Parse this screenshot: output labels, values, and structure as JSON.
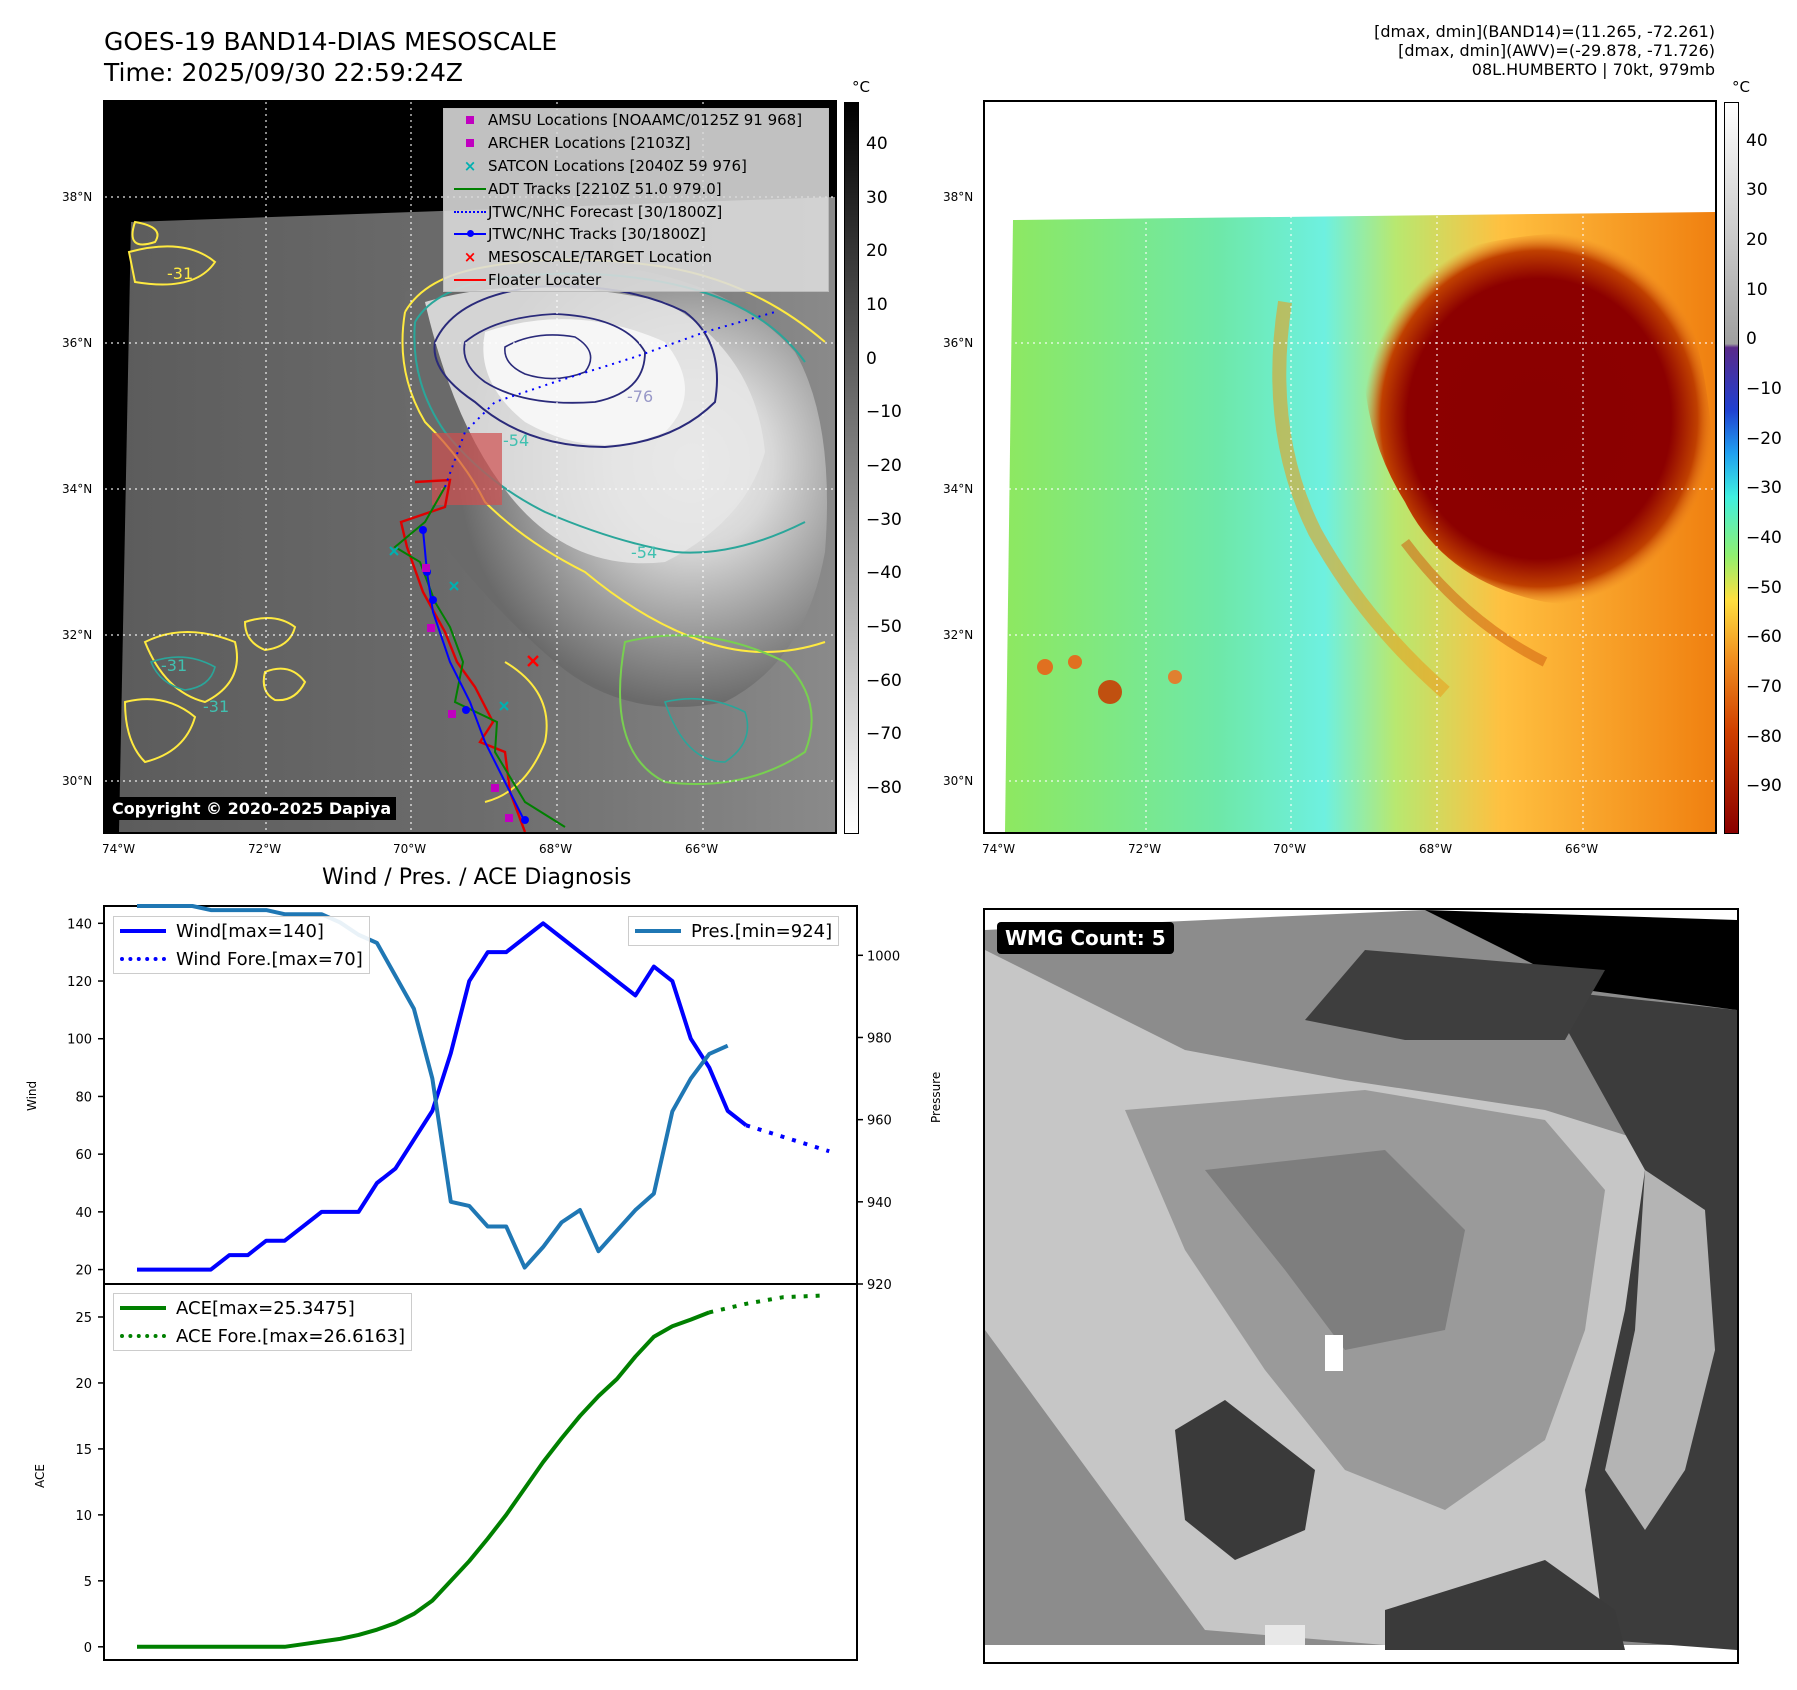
{
  "header": {
    "title_line1": "GOES-19 BAND14-DIAS MESOSCALE",
    "title_line2": "Time: 2025/09/30 22:59:24Z",
    "info_line1": "[dmax, dmin](BAND14)=(11.265, -72.261)",
    "info_line2": "[dmax, dmin](AWV)=(-29.878, -71.726)",
    "info_line3": "08L.HUMBERTO | 70kt, 979mb"
  },
  "map": {
    "lat_labels": [
      "38°N",
      "36°N",
      "34°N",
      "32°N",
      "30°N"
    ],
    "lon_labels": [
      "74°W",
      "72°W",
      "70°W",
      "68°W",
      "66°W"
    ],
    "contour_labels": [
      "-31",
      "-31",
      "-31",
      "-76",
      "-54",
      "-54"
    ],
    "copyright": "Copyright © 2020-2025 Dapiya",
    "colorbar_unit": "°C",
    "colorbar_ticks": [
      "40",
      "30",
      "20",
      "10",
      "0",
      "−10",
      "−20",
      "−30",
      "−40",
      "−50",
      "−60",
      "−70",
      "−80"
    ],
    "legend": [
      {
        "label": "AMSU Locations [NOAAMC/0125Z 91 968]",
        "symbol": "square",
        "color": "#c000c0"
      },
      {
        "label": "ARCHER Locations [2103Z]",
        "symbol": "square",
        "color": "#c000c0"
      },
      {
        "label": "SATCON Locations [2040Z 59 976]",
        "symbol": "x",
        "color": "#00b0b0"
      },
      {
        "label": "ADT Tracks [2210Z 51.0 979.0]",
        "symbol": "line",
        "color": "#008000"
      },
      {
        "label": "JTWC/NHC Forecast [30/1800Z]",
        "symbol": "dotted",
        "color": "#0000ff"
      },
      {
        "label": "JTWC/NHC Tracks [30/1800Z]",
        "symbol": "line-dot",
        "color": "#0000ff"
      },
      {
        "label": "MESOSCALE/TARGET Location",
        "symbol": "x",
        "color": "#ff0000"
      },
      {
        "label": "Floater Locater",
        "symbol": "line",
        "color": "#ff0000"
      }
    ]
  },
  "awv": {
    "lat_labels": [
      "38°N",
      "36°N",
      "34°N",
      "32°N",
      "30°N"
    ],
    "lon_labels": [
      "74°W",
      "72°W",
      "70°W",
      "68°W",
      "66°W"
    ],
    "colorbar_unit": "°C",
    "colorbar_ticks": [
      "40",
      "30",
      "20",
      "10",
      "0",
      "−10",
      "−20",
      "−30",
      "−40",
      "−50",
      "−60",
      "−70",
      "−80",
      "−90"
    ]
  },
  "wmg": {
    "label": "WMG Count: 5"
  },
  "chart_data": [
    {
      "type": "line",
      "title": "Wind / Pres. / ACE Diagnosis",
      "ylabel": "Wind",
      "y2label": "Pressure",
      "ylim": [
        15,
        146
      ],
      "y2lim": [
        920,
        1012
      ],
      "yticks": [
        "140",
        "120",
        "100",
        "80",
        "60",
        "40",
        "20"
      ],
      "y2ticks": [
        "1000",
        "980",
        "960",
        "940",
        "920"
      ],
      "series": [
        {
          "name": "Wind[max=140]",
          "color": "#0000ff",
          "style": "solid",
          "values": [
            20,
            20,
            20,
            20,
            20,
            25,
            25,
            30,
            30,
            35,
            40,
            40,
            40,
            50,
            55,
            65,
            75,
            95,
            120,
            130,
            130,
            135,
            140,
            135,
            130,
            125,
            120,
            115,
            125,
            120,
            100,
            90,
            75,
            70
          ]
        },
        {
          "name": "Wind Fore.[max=70]",
          "color": "#0000ff",
          "style": "dotted",
          "values_forecast": [
            70,
            67,
            64,
            61
          ]
        },
        {
          "name": "Pres.[min=924]",
          "color": "#1f77b4",
          "style": "solid",
          "axis": "right",
          "values": [
            1012,
            1012,
            1012,
            1012,
            1011,
            1011,
            1011,
            1011,
            1010,
            1010,
            1010,
            1008,
            1005,
            1003,
            995,
            987,
            970,
            940,
            939,
            934,
            934,
            924,
            929,
            935,
            938,
            928,
            933,
            938,
            942,
            962,
            970,
            976,
            978
          ]
        }
      ],
      "legend_location": "upper-left / upper-right"
    },
    {
      "type": "line",
      "ylabel": "ACE",
      "ylim": [
        -1,
        27.5
      ],
      "yticks": [
        "25",
        "20",
        "15",
        "10",
        "5",
        "0"
      ],
      "series": [
        {
          "name": "ACE[max=25.3475]",
          "color": "#008000",
          "style": "solid",
          "values": [
            0,
            0,
            0,
            0,
            0,
            0,
            0,
            0,
            0,
            0.2,
            0.4,
            0.6,
            0.9,
            1.3,
            1.8,
            2.5,
            3.5,
            5,
            6.5,
            8.2,
            10,
            12,
            14,
            15.8,
            17.5,
            19,
            20.3,
            22,
            23.5,
            24.3,
            24.8,
            25.3475
          ]
        },
        {
          "name": "ACE Fore.[max=26.6163]",
          "color": "#008000",
          "style": "dotted",
          "values_forecast": [
            25.3475,
            26.0,
            26.5,
            26.6163
          ]
        }
      ],
      "legend_location": "upper-left"
    }
  ]
}
